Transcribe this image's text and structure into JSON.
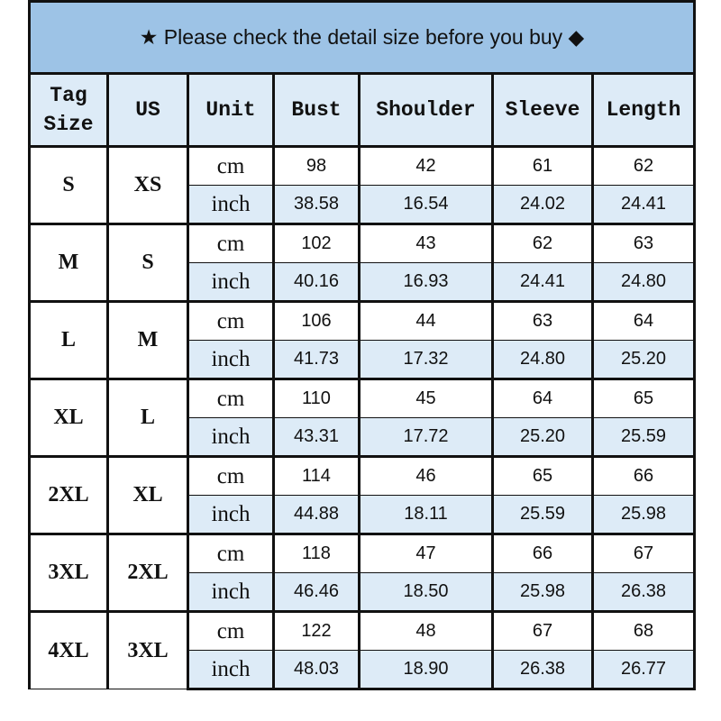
{
  "title": "★ Please check the detail size before you buy ◆",
  "headers": [
    "Tag Size",
    "US",
    "Unit",
    "Bust",
    "Shoulder",
    "Sleeve",
    "Length"
  ],
  "colors": {
    "title_bg": "#9dc3e6",
    "header_bg": "#ddebf7",
    "inch_row_bg": "#ddebf7"
  },
  "rows": [
    {
      "tag": "S",
      "us": "XS",
      "cm": [
        "98",
        "42",
        "61",
        "62"
      ],
      "inch": [
        "38.58",
        "16.54",
        "24.02",
        "24.41"
      ]
    },
    {
      "tag": "M",
      "us": "S",
      "cm": [
        "102",
        "43",
        "62",
        "63"
      ],
      "inch": [
        "40.16",
        "16.93",
        "24.41",
        "24.80"
      ]
    },
    {
      "tag": "L",
      "us": "M",
      "cm": [
        "106",
        "44",
        "63",
        "64"
      ],
      "inch": [
        "41.73",
        "17.32",
        "24.80",
        "25.20"
      ]
    },
    {
      "tag": "XL",
      "us": "L",
      "cm": [
        "110",
        "45",
        "64",
        "65"
      ],
      "inch": [
        "43.31",
        "17.72",
        "25.20",
        "25.59"
      ]
    },
    {
      "tag": "2XL",
      "us": "XL",
      "cm": [
        "114",
        "46",
        "65",
        "66"
      ],
      "inch": [
        "44.88",
        "18.11",
        "25.59",
        "25.98"
      ]
    },
    {
      "tag": "3XL",
      "us": "2XL",
      "cm": [
        "118",
        "47",
        "66",
        "67"
      ],
      "inch": [
        "46.46",
        "18.50",
        "25.98",
        "26.38"
      ]
    },
    {
      "tag": "4XL",
      "us": "3XL",
      "cm": [
        "122",
        "48",
        "67",
        "68"
      ],
      "inch": [
        "48.03",
        "18.90",
        "26.38",
        "26.77"
      ]
    }
  ],
  "units": {
    "cm": "cm",
    "inch": "inch"
  }
}
